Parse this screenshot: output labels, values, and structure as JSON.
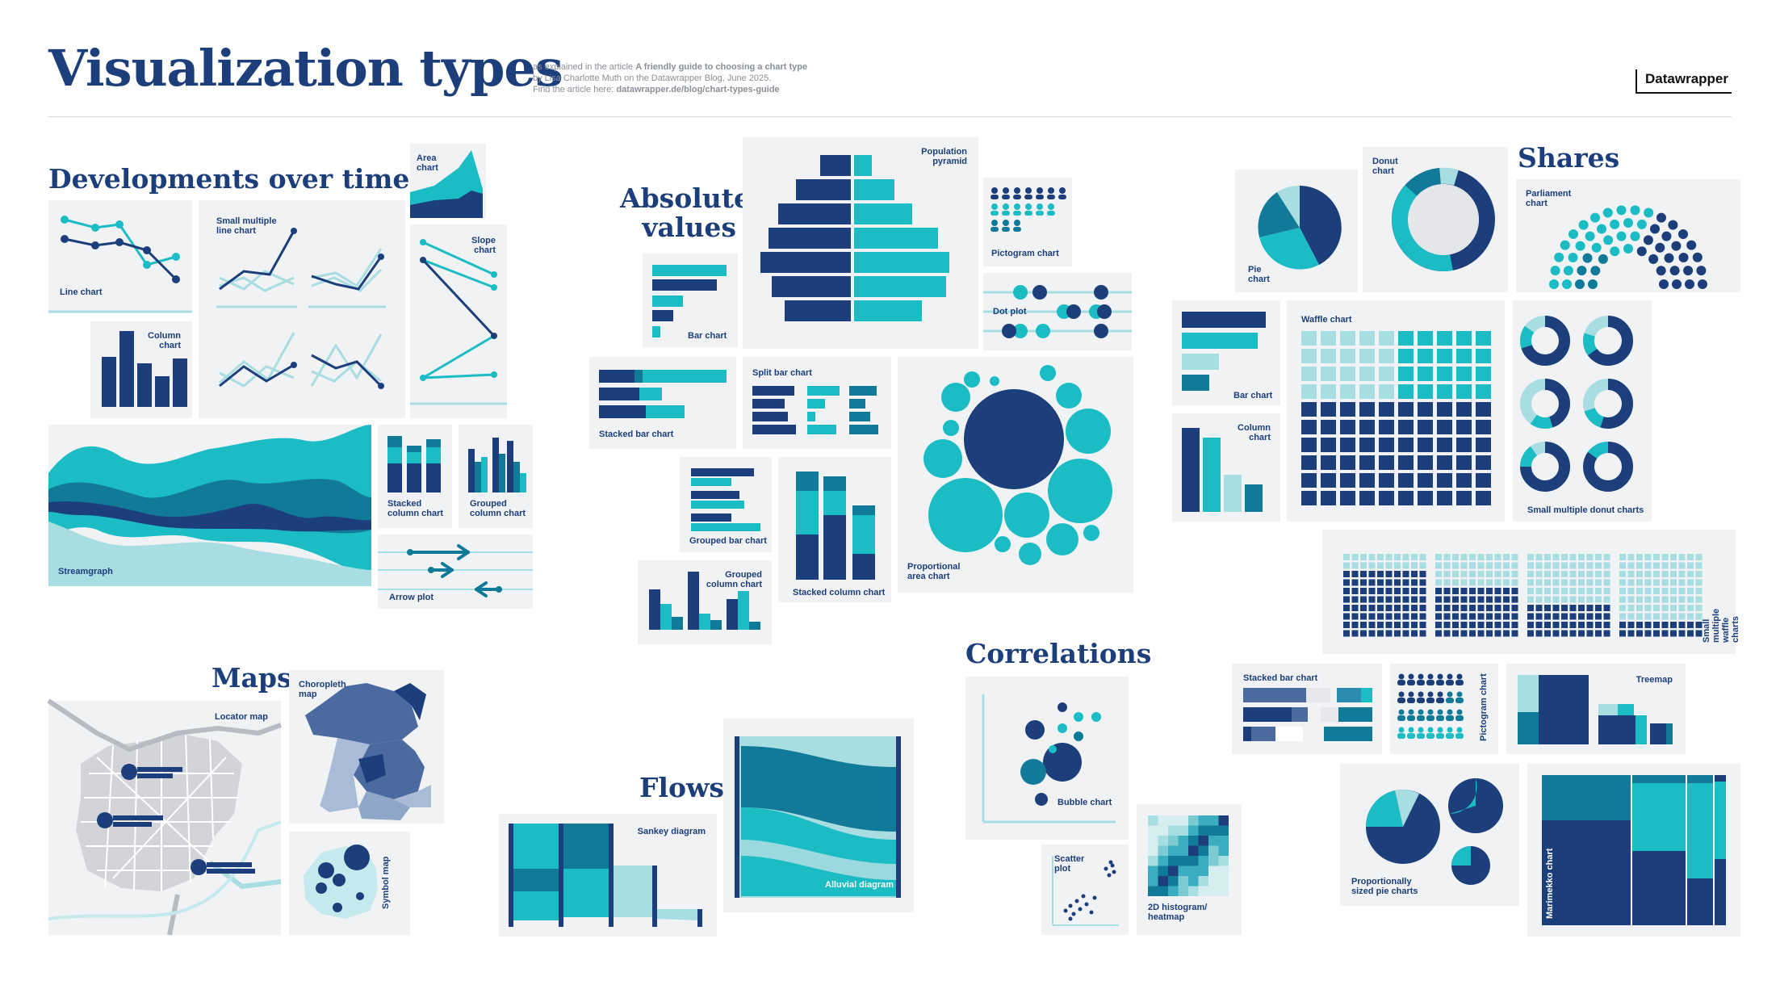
{
  "header": {
    "title": "Visualization types",
    "subtitle_line1_prefix": "as explained in the article ",
    "subtitle_line1_article": "A friendly guide to choosing a chart type",
    "subtitle_line2": "by Lisa Charlotte Muth on the Datawrapper Blog, June 2025.",
    "subtitle_line3_prefix": "Find the article here: ",
    "subtitle_line3_link": "datawrapper.de/blog/chart-types-guide",
    "logo": "Datawrapper"
  },
  "sections": {
    "developments": "Developments over time",
    "absolute": "Absolute\nvalues",
    "shares": "Shares",
    "maps": "Maps",
    "flows": "Flows",
    "correlations": "Correlations"
  },
  "charts": {
    "line": "Line chart",
    "small_multiple_line": "Small multiple\nline chart",
    "area": "Area\nchart",
    "slope": "Slope\nchart",
    "column": "Column\nchart",
    "streamgraph": "Streamgraph",
    "stacked_column": "Stacked\ncolumn chart",
    "grouped_column": "Grouped\ncolumn chart",
    "arrow": "Arrow plot",
    "population_pyramid": "Population\npyramid",
    "pictogram": "Pictogram chart",
    "dot_plot": "Dot plot",
    "bar": "Bar chart",
    "stacked_bar": "Stacked bar chart",
    "split_bar": "Split bar chart",
    "grouped_bar": "Grouped bar chart",
    "stacked_column_abs": "Stacked column chart",
    "grouped_column_abs": "Grouped\ncolumn chart",
    "proportional_area": "Proportional\narea chart",
    "pie": "Pie\nchart",
    "donut": "Donut\nchart",
    "parliament": "Parliament\nchart",
    "bar_shares": "Bar chart",
    "column_shares": "Column\nchart",
    "waffle": "Waffle chart",
    "small_multiple_donut": "Small multiple donut charts",
    "small_multiple_waffle": "Small multiple\nwaffle charts",
    "stacked_bar_shares": "Stacked bar chart",
    "pictogram_shares": "Pictogram chart",
    "treemap": "Treemap",
    "proportional_pies": "Proportionally\nsized pie charts",
    "marimekko": "Marimekko chart",
    "locator_map": "Locator map",
    "choropleth": "Choropleth\nmap",
    "symbol_map": "Symbol map",
    "sankey": "Sankey diagram",
    "alluvial": "Alluvial diagram",
    "bubble": "Bubble chart",
    "scatter": "Scatter\nplot",
    "histogram2d": "2D histogram/\nheatmap"
  },
  "colors": {
    "dark": "#1c3f7c",
    "teal": "#1bbcc4",
    "mid": "#117a98",
    "light": "#a8dde1",
    "card": "#f1f2f4"
  }
}
